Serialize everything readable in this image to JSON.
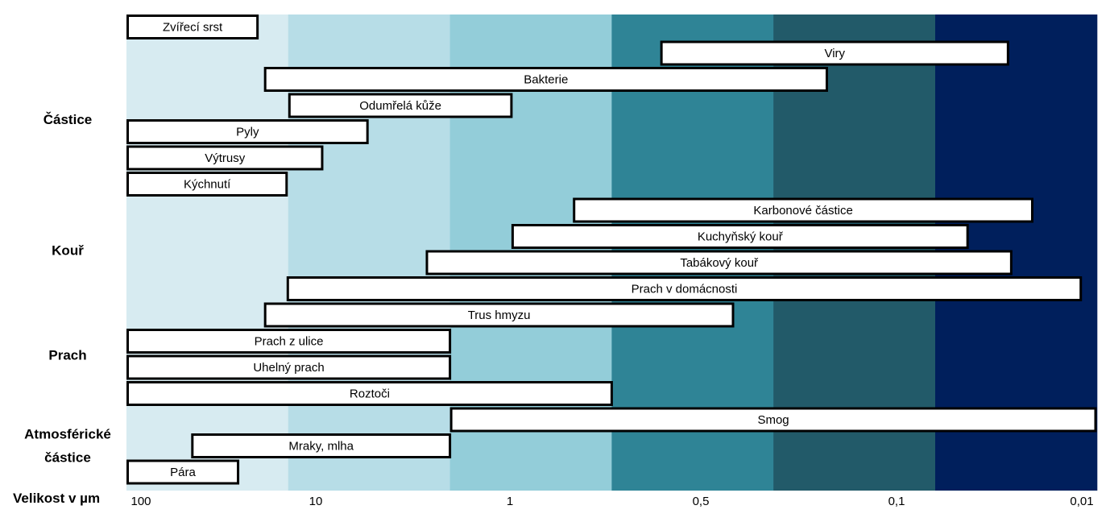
{
  "chart_data": {
    "type": "bar",
    "subtype": "horizontal-range",
    "xlabel": "Velikost v µm",
    "x_ticks": [
      "100",
      "10",
      "1",
      "0,5",
      "0,1",
      "0,01"
    ],
    "band_colors": [
      "#d7ebf1",
      "#b7dde7",
      "#93cdd9",
      "#2f8496",
      "#225a69",
      "#001f5c"
    ],
    "bar_fill": "#ffffff",
    "bar_stroke": "#000000",
    "categories": [
      {
        "name": "Částice",
        "row": 4
      },
      {
        "name": "Kouř",
        "row": 9
      },
      {
        "name": "Prach",
        "row": 13
      },
      {
        "name": "Atmosférické částice",
        "row": 16.5
      }
    ],
    "bars": [
      {
        "label": "Zvířecí srst",
        "start": 0.0,
        "end": 0.81
      },
      {
        "label": "Viry",
        "start": 3.3,
        "end": 5.45
      },
      {
        "label": "Bakterie",
        "start": 0.85,
        "end": 4.33
      },
      {
        "label": "Odumřelá kůže",
        "start": 1.0,
        "end": 2.38
      },
      {
        "label": "Pyly",
        "start": 0.0,
        "end": 1.49
      },
      {
        "label": "Výtrusy",
        "start": 0.0,
        "end": 1.21
      },
      {
        "label": "Kýchnutí",
        "start": 0.0,
        "end": 0.99
      },
      {
        "label": "Karbonové částice",
        "start": 2.76,
        "end": 5.6
      },
      {
        "label": "Kuchyňský kouř",
        "start": 2.38,
        "end": 5.2
      },
      {
        "label": "Tabákový kouř",
        "start": 1.85,
        "end": 5.47
      },
      {
        "label": "Prach v domácnosti",
        "start": 0.99,
        "end": 5.9
      },
      {
        "label": "Trus hmyzu",
        "start": 0.85,
        "end": 3.75
      },
      {
        "label": "Prach z ulice",
        "start": 0.0,
        "end": 2.0
      },
      {
        "label": "Uhelný prach",
        "start": 0.0,
        "end": 2.0
      },
      {
        "label": "Roztoči",
        "start": 0.0,
        "end": 3.0
      },
      {
        "label": "Smog",
        "start": 2.0,
        "end": 6.0
      },
      {
        "label": "Mraky, mlha",
        "start": 0.4,
        "end": 2.0
      },
      {
        "label": "Pára",
        "start": 0.0,
        "end": 0.69
      }
    ]
  }
}
